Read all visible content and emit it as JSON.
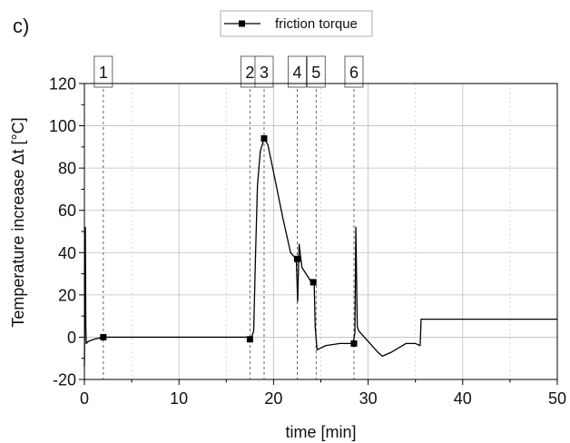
{
  "panel_label": "c)",
  "chart_data": {
    "type": "line",
    "xlabel": "time [min]",
    "ylabel": "Temperature increase Δt [°C]",
    "xlim": [
      0,
      50
    ],
    "ylim": [
      -20,
      120
    ],
    "x_ticks": [
      0,
      10,
      20,
      30,
      40,
      50
    ],
    "y_ticks": [
      -20,
      0,
      20,
      40,
      60,
      80,
      100,
      120
    ],
    "grid": true,
    "legend_position": "top-center",
    "series": [
      {
        "name": "friction torque",
        "color": "#000000",
        "marker": "square",
        "points": [
          [
            0,
            -14
          ],
          [
            0.1,
            52
          ],
          [
            0.15,
            5
          ],
          [
            0.2,
            -3
          ],
          [
            0.4,
            -2
          ],
          [
            1,
            -1
          ],
          [
            2,
            0
          ],
          [
            5,
            0
          ],
          [
            10,
            0
          ],
          [
            15,
            0
          ],
          [
            17.3,
            0
          ],
          [
            17.6,
            -1
          ],
          [
            17.9,
            3
          ],
          [
            18.1,
            40
          ],
          [
            18.3,
            72
          ],
          [
            18.6,
            88
          ],
          [
            19,
            94
          ],
          [
            19.4,
            91
          ],
          [
            20,
            78
          ],
          [
            21,
            56
          ],
          [
            21.8,
            40
          ],
          [
            22.4,
            37
          ],
          [
            22.55,
            17
          ],
          [
            22.7,
            44
          ],
          [
            23,
            33
          ],
          [
            24,
            26
          ],
          [
            24.3,
            25
          ],
          [
            24.4,
            5
          ],
          [
            24.6,
            -6
          ],
          [
            25.5,
            -4
          ],
          [
            27,
            -3
          ],
          [
            28.4,
            -3
          ],
          [
            28.6,
            2
          ],
          [
            28.7,
            52
          ],
          [
            28.85,
            5
          ],
          [
            29,
            3
          ],
          [
            30,
            -2
          ],
          [
            31,
            -7
          ],
          [
            31.5,
            -9
          ],
          [
            32.5,
            -7
          ],
          [
            34,
            -3
          ],
          [
            35,
            -3
          ],
          [
            35.5,
            -4
          ],
          [
            35.6,
            8.5
          ],
          [
            40,
            8.5
          ],
          [
            45,
            8.5
          ],
          [
            50,
            8.5
          ]
        ],
        "marker_points": [
          [
            2,
            0
          ],
          [
            17.5,
            -1
          ],
          [
            19,
            94
          ],
          [
            22.5,
            37
          ],
          [
            24.2,
            26
          ],
          [
            28.5,
            -3
          ]
        ]
      }
    ],
    "annotations": [
      {
        "label": "1",
        "x": 2
      },
      {
        "label": "2",
        "x": 17.5
      },
      {
        "label": "3",
        "x": 19
      },
      {
        "label": "4",
        "x": 22.5
      },
      {
        "label": "5",
        "x": 24.5
      },
      {
        "label": "6",
        "x": 28.5
      }
    ]
  }
}
